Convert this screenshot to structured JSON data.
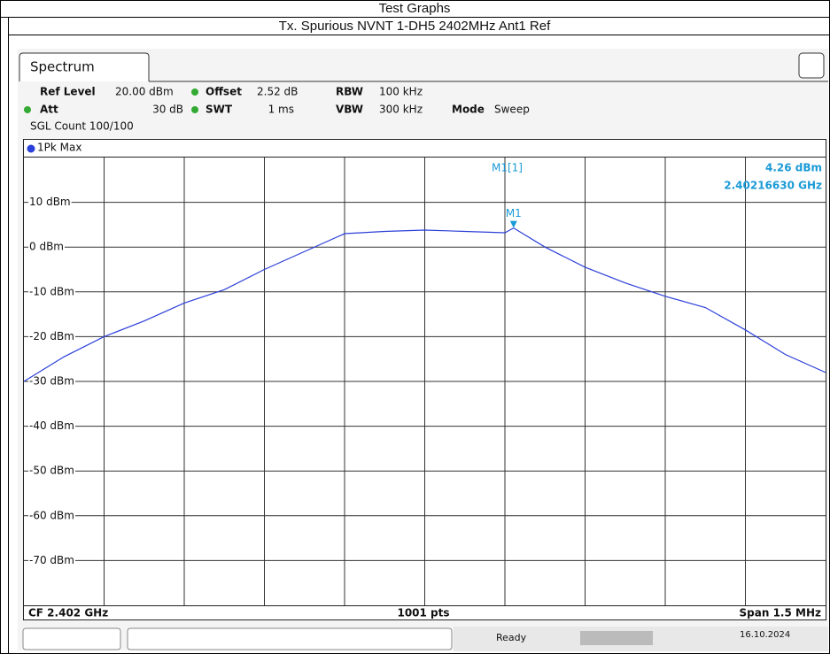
{
  "header": {
    "title": "Test Graphs",
    "subtitle": "Tx. Spurious NVNT 1-DH5 2402MHz Ant1 Ref"
  },
  "instrument": {
    "tab": "Spectrum",
    "settings": [
      [
        "Ref Level",
        "20.00 dBm"
      ],
      [
        "Offset",
        "2.52 dB"
      ],
      [
        "RBW",
        "100 kHz"
      ],
      [
        "Att",
        "30 dB"
      ],
      [
        "SWT",
        "1 ms"
      ],
      [
        "VBW",
        "300 kHz"
      ],
      [
        "Mode",
        "Sweep"
      ]
    ],
    "sgl_count": "SGL Count 100/100",
    "trace_label": "1Pk Max",
    "footer": {
      "center_freq": "CF 2.402 GHz",
      "points": "1001 pts",
      "span": "Span 1.5 MHz"
    },
    "status": "Ready",
    "date": "16.10.2024"
  },
  "chart_data": {
    "type": "line",
    "x": [
      2.40125,
      2.401325,
      2.4014,
      2.401475,
      2.40155,
      2.401625,
      2.4017,
      2.401775,
      2.40185,
      2.401925,
      2.402,
      2.402075,
      2.40215,
      2.4021663,
      2.402225,
      2.4023,
      2.402375,
      2.40245,
      2.402525,
      2.4026,
      2.402675,
      2.40275
    ],
    "series": [
      {
        "name": "1Pk Max",
        "color": "#2b3fd9",
        "values": [
          -30,
          -24.5,
          -20,
          -16.5,
          -12.5,
          -9.5,
          -5,
          -1,
          3,
          3.5,
          3.8,
          3.5,
          3.2,
          4.26,
          0,
          -4.5,
          -8,
          -11,
          -13.5,
          -18.5,
          -24,
          -28
        ]
      }
    ],
    "xlim": [
      2.40125,
      2.40275
    ],
    "ylim": [
      -80,
      20
    ],
    "yticks": [
      {
        "value": 10,
        "label": "10 dBm"
      },
      {
        "value": 0,
        "label": "0 dBm"
      },
      {
        "value": -10,
        "label": "-10 dBm"
      },
      {
        "value": -20,
        "label": "-20 dBm"
      },
      {
        "value": -30,
        "label": "-30 dBm"
      },
      {
        "value": -40,
        "label": "-40 dBm"
      },
      {
        "value": -50,
        "label": "-50 dBm"
      },
      {
        "value": -60,
        "label": "-60 dBm"
      },
      {
        "value": -70,
        "label": "-70 dBm"
      }
    ],
    "grid": true,
    "marker": {
      "name": "M1",
      "readout": "M1[1]",
      "x": 2.4021663,
      "x_label": "2.40216630 GHz",
      "y": 4.26,
      "y_label": "4.26 dBm"
    }
  }
}
